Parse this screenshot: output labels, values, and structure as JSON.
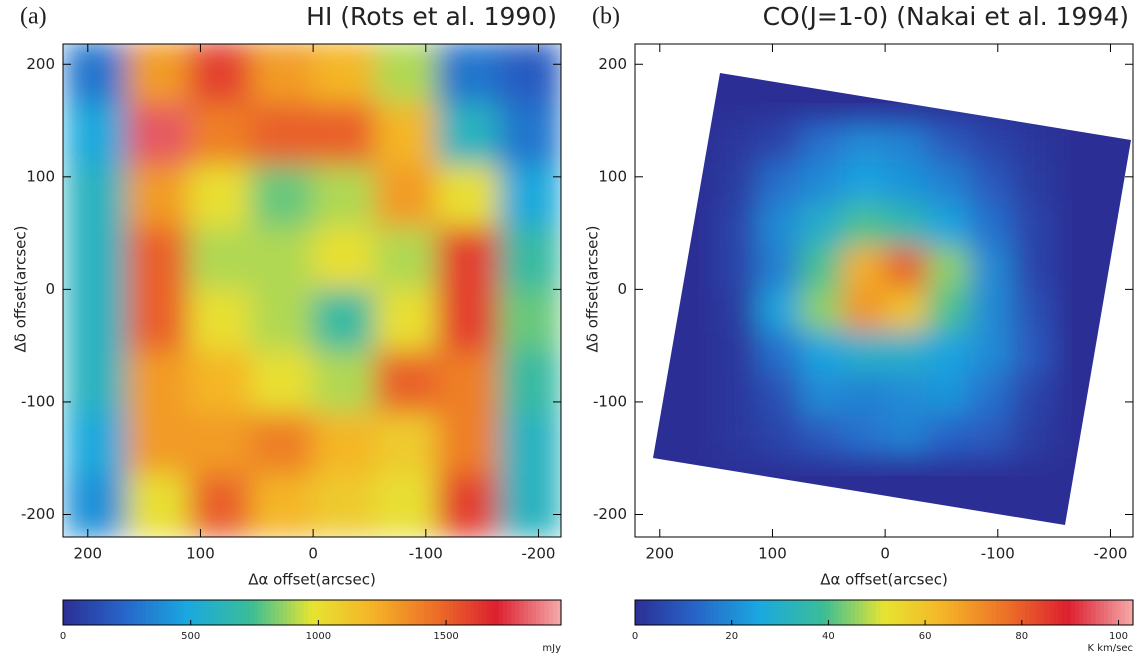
{
  "chart_data": [
    {
      "type": "heatmap",
      "panel_label": "(a)",
      "title": "HI (Rots et al. 1990)",
      "x_label": "Δα offset(arcsec)",
      "y_label": "Δδ offset(arcsec)",
      "xlim": [
        222,
        -220
      ],
      "ylim": [
        -220,
        218
      ],
      "xticks": [
        200,
        100,
        0,
        -100,
        -200
      ],
      "yticks": [
        -200,
        -100,
        0,
        100,
        200
      ],
      "x": [
        192.5,
        137.5,
        82.5,
        27.5,
        -27.5,
        -82.5,
        -137.5,
        -192.5
      ],
      "y": [
        192.5,
        137.5,
        82.5,
        27.5,
        -27.5,
        -82.5,
        -137.5,
        -192.5
      ],
      "values": [
        [
          300,
          1300,
          1600,
          1300,
          1200,
          900,
          300,
          200
        ],
        [
          500,
          1800,
          1400,
          1500,
          1500,
          1200,
          600,
          300
        ],
        [
          600,
          1300,
          1000,
          800,
          900,
          1300,
          1000,
          500
        ],
        [
          600,
          1500,
          900,
          900,
          1000,
          900,
          1600,
          700
        ],
        [
          600,
          1500,
          1000,
          900,
          700,
          1000,
          1600,
          800
        ],
        [
          600,
          1300,
          1200,
          1000,
          900,
          1500,
          1400,
          700
        ],
        [
          500,
          1300,
          1300,
          1400,
          1200,
          1100,
          1400,
          600
        ],
        [
          400,
          1000,
          1500,
          1200,
          1100,
          1000,
          1600,
          600
        ]
      ],
      "colorbar": {
        "lim": [
          0,
          1950
        ],
        "ticks": [
          0,
          500,
          1000,
          1500
        ],
        "unit": "mJy"
      }
    },
    {
      "type": "heatmap",
      "panel_label": "(b)",
      "title": "CO(J=1-0) (Nakai et al. 1994)",
      "x_label": "Δα offset(arcsec)",
      "y_label": "Δδ offset(arcsec)",
      "xlim": [
        222,
        -220
      ],
      "ylim": [
        -220,
        218
      ],
      "xticks": [
        200,
        100,
        0,
        -100,
        -200
      ],
      "yticks": [
        -200,
        -100,
        0,
        100,
        200
      ],
      "x": [
        131.25,
        93.75,
        56.25,
        18.75,
        -18.75,
        -56.25,
        -93.75,
        -131.25
      ],
      "y": [
        131.25,
        93.75,
        56.25,
        18.75,
        -18.75,
        -56.25,
        -93.75,
        -131.25
      ],
      "values": [
        [
          2,
          5,
          15,
          20,
          18,
          10,
          5,
          2
        ],
        [
          3,
          15,
          20,
          25,
          22,
          18,
          10,
          3
        ],
        [
          5,
          20,
          30,
          40,
          35,
          25,
          15,
          5
        ],
        [
          5,
          18,
          40,
          65,
          80,
          45,
          20,
          5
        ],
        [
          3,
          25,
          45,
          70,
          60,
          40,
          20,
          8
        ],
        [
          2,
          15,
          25,
          30,
          30,
          25,
          20,
          10
        ],
        [
          2,
          8,
          20,
          18,
          20,
          22,
          15,
          5
        ],
        [
          2,
          5,
          10,
          15,
          18,
          12,
          10,
          3
        ]
      ],
      "colorbar": {
        "lim": [
          0,
          103
        ],
        "ticks": [
          0,
          20,
          40,
          60,
          80,
          100
        ],
        "unit": "K km/sec"
      }
    }
  ]
}
